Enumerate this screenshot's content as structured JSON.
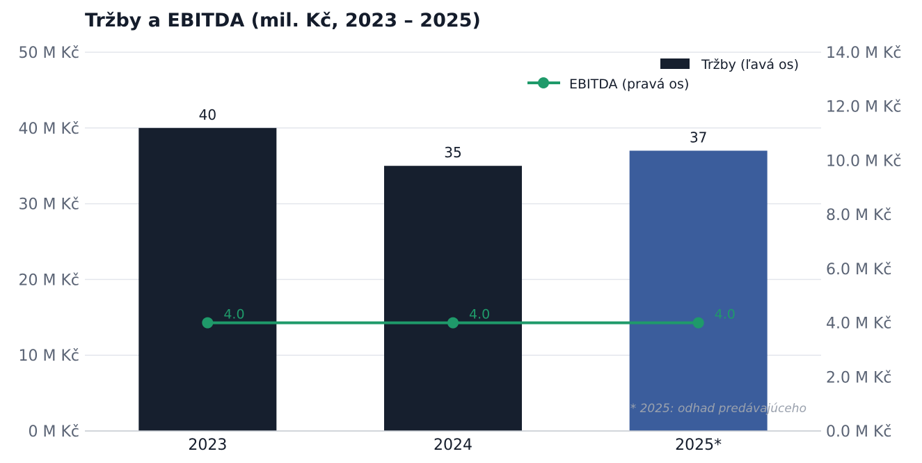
{
  "chart_data": {
    "type": "bar",
    "title": "Tržby a EBITDA (mil. Kč, 2023 – 2025)",
    "categories": [
      "2023",
      "2024",
      "2025*"
    ],
    "series": [
      {
        "name": "Tržby (ľavá os)",
        "kind": "bar",
        "axis": "left",
        "values": [
          40,
          35,
          37
        ],
        "value_labels": [
          "40",
          "35",
          "37"
        ],
        "colors": [
          "#161f2e",
          "#161f2e",
          "#3b5d9c"
        ]
      },
      {
        "name": "EBITDA (pravá os)",
        "kind": "line",
        "axis": "right",
        "values": [
          4.0,
          4.0,
          4.0
        ],
        "value_labels": [
          "4.0",
          "4.0",
          "4.0"
        ],
        "color": "#1f9a6a"
      }
    ],
    "y_left": {
      "ylim": [
        0,
        50
      ],
      "ticks": [
        0,
        10,
        20,
        30,
        40,
        50
      ],
      "tick_labels": [
        "0 M Kč",
        "10 M Kč",
        "20 M Kč",
        "30 M Kč",
        "40 M Kč",
        "50 M Kč"
      ]
    },
    "y_right": {
      "ylim": [
        0,
        14
      ],
      "ticks": [
        0,
        2,
        4,
        6,
        8,
        10,
        12,
        14
      ],
      "tick_labels": [
        "0.0 M Kč",
        "2.0 M Kč",
        "4.0 M Kč",
        "6.0 M Kč",
        "8.0 M Kč",
        "10.0 M Kč",
        "12.0 M Kč",
        "14.0 M Kč"
      ]
    },
    "grid": true,
    "legend_position": "top-right",
    "annotation": "* 2025: odhad predávajúceho"
  }
}
